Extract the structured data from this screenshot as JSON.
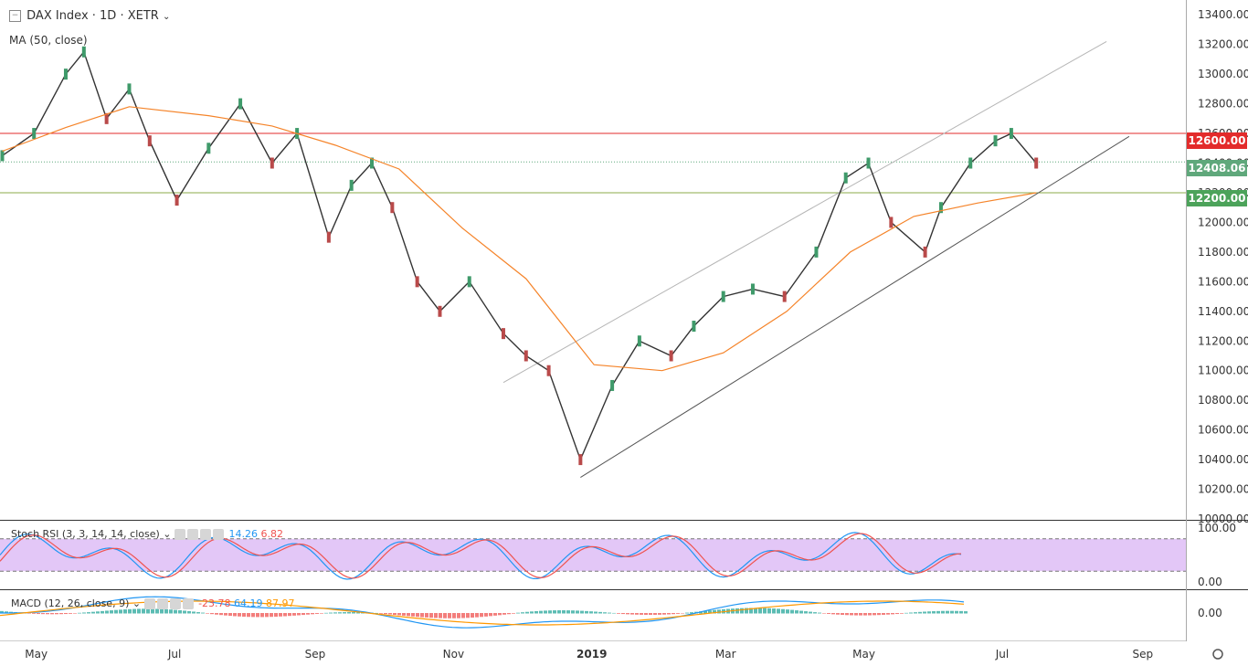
{
  "header": {
    "symbol": "DAX Index",
    "interval": "1D",
    "exchange": "XETR",
    "title_text": "DAX Index · 1D · XETR",
    "ma_label": "MA (50, close)"
  },
  "price_axis": {
    "ticks": [
      "13400.00",
      "13200.00",
      "13000.00",
      "12800.00",
      "12600.00",
      "12400.00",
      "12200.00",
      "12000.00",
      "11800.00",
      "11600.00",
      "11400.00",
      "11200.00",
      "11000.00",
      "10800.00",
      "10600.00",
      "10400.00",
      "10200.00",
      "10000.00"
    ],
    "tags": [
      {
        "label": "12600.00",
        "value": 12600,
        "color": "#e32b2b"
      },
      {
        "label": "12408.06",
        "value": 12408.06,
        "color": "#5fa87b"
      },
      {
        "label": "12200.00",
        "value": 12200,
        "color": "#4ca35a"
      }
    ]
  },
  "time_axis": {
    "labels": [
      "May",
      "Jul",
      "Sep",
      "Nov",
      "2019",
      "Mar",
      "May",
      "Jul",
      "Sep"
    ]
  },
  "stoch_rsi": {
    "label": "Stoch RSI (3, 3, 14, 14, close)",
    "k_value": "14.26",
    "d_value": "6.82",
    "k_color": "#2196f3",
    "d_color": "#ef5350",
    "axis": [
      "100.00",
      "0.00"
    ],
    "upper_band": 80,
    "lower_band": 20
  },
  "macd": {
    "label": "MACD (12, 26, close, 9)",
    "hist_value": "-23.78",
    "macd_value": "64.19",
    "signal_value": "87.97",
    "hist_color": "#ef5350",
    "macd_color": "#2196f3",
    "signal_color": "#ff9800",
    "axis": [
      "0.00"
    ]
  },
  "chart_data": {
    "type": "line",
    "title": "",
    "xlabel": "",
    "ylabel": "",
    "ylim": [
      10000,
      13500
    ],
    "x_range": [
      "2018-04-15",
      "2019-09-20"
    ],
    "horizontal_levels": [
      {
        "value": 12600,
        "color": "#e32b2b"
      },
      {
        "value": 12200,
        "color": "#8bab4a"
      },
      {
        "value": 12408.06,
        "color": "#5fa87b"
      }
    ],
    "trend_lines": [
      {
        "from": [
          "2018-12-27",
          10280
        ],
        "to": [
          "2019-08-26",
          12580
        ],
        "color": "#555555"
      },
      {
        "from": [
          "2018-11-23",
          10920
        ],
        "to": [
          "2019-08-16",
          13220
        ],
        "color": "#b5b5b5"
      }
    ],
    "series": [
      {
        "name": "DAX Index",
        "color": "#333333",
        "x": [
          "2018-04-16",
          "2018-04-30",
          "2018-05-14",
          "2018-05-22",
          "2018-06-01",
          "2018-06-11",
          "2018-06-20",
          "2018-07-02",
          "2018-07-16",
          "2018-07-30",
          "2018-08-13",
          "2018-08-24",
          "2018-09-07",
          "2018-09-17",
          "2018-09-26",
          "2018-10-05",
          "2018-10-16",
          "2018-10-26",
          "2018-11-08",
          "2018-11-23",
          "2018-12-03",
          "2018-12-13",
          "2018-12-27",
          "2019-01-10",
          "2019-01-22",
          "2019-02-05",
          "2019-02-15",
          "2019-02-28",
          "2019-03-13",
          "2019-03-27",
          "2019-04-10",
          "2019-04-23",
          "2019-05-03",
          "2019-05-13",
          "2019-05-28",
          "2019-06-04",
          "2019-06-17",
          "2019-06-28",
          "2019-07-05",
          "2019-07-16"
        ],
        "values": [
          12450,
          12600,
          13000,
          13150,
          12700,
          12900,
          12550,
          12150,
          12500,
          12800,
          12400,
          12600,
          11900,
          12250,
          12400,
          12100,
          11600,
          11400,
          11600,
          11250,
          11100,
          11000,
          10400,
          10900,
          11200,
          11100,
          11300,
          11500,
          11550,
          11500,
          11800,
          12300,
          12400,
          12000,
          11800,
          12100,
          12400,
          12550,
          12600,
          12400
        ]
      },
      {
        "name": "MA (50, close)",
        "color": "#f5842a",
        "x": [
          "2018-04-16",
          "2018-05-14",
          "2018-06-11",
          "2018-07-16",
          "2018-08-13",
          "2018-09-10",
          "2018-10-08",
          "2018-11-05",
          "2018-12-03",
          "2019-01-02",
          "2019-02-01",
          "2019-02-28",
          "2019-03-28",
          "2019-04-25",
          "2019-05-23",
          "2019-06-20",
          "2019-07-16"
        ],
        "values": [
          12480,
          12640,
          12780,
          12720,
          12650,
          12520,
          12360,
          11960,
          11620,
          11040,
          11000,
          11120,
          11400,
          11800,
          12040,
          12130,
          12200
        ]
      }
    ]
  }
}
